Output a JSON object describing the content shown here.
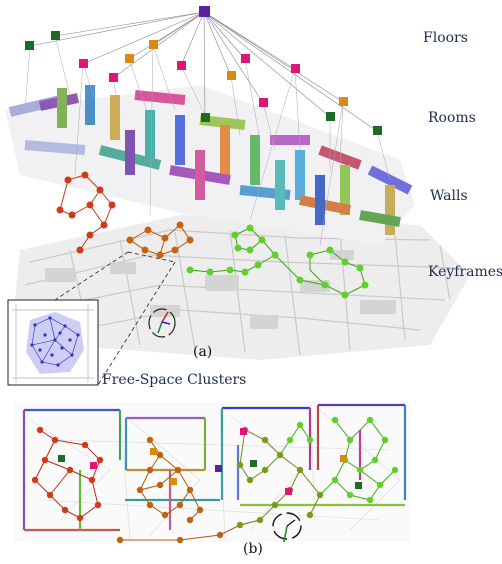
{
  "labels": {
    "floors": "Floors",
    "rooms": "Rooms",
    "walls": "Walls",
    "keyframes": "Keyframes",
    "free_space": "Free-Space Clusters",
    "panel_a": "(a)",
    "panel_b": "(b)"
  },
  "colors": {
    "floor_node": "#5b1fa6",
    "room_node_magenta": "#e0157a",
    "room_node_orange": "#d88a12",
    "room_node_green": "#1f6b24",
    "walls_red": "#d03a1a",
    "walls_orange": "#c8620e",
    "walls_green": "#5fcf2a",
    "free_space": "#3a3ad8",
    "point_cloud": "#bdbdbd"
  }
}
